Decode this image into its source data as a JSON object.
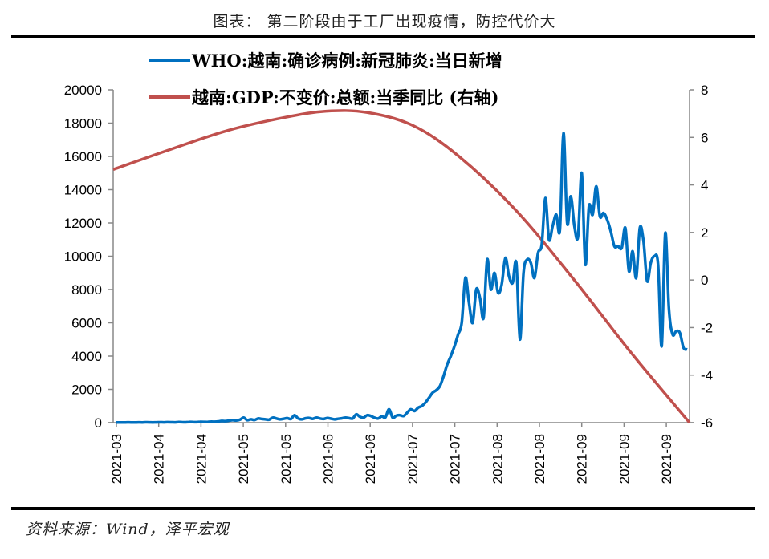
{
  "header": {
    "title": "图表： 第二阶段由于工厂出现疫情，防控代价大"
  },
  "footer": {
    "source": "资料来源：Wind，泽平宏观"
  },
  "colors": {
    "cases": "#0070C0",
    "gdp": "#C0504D",
    "axis": "#888888"
  },
  "chart_data": {
    "type": "line",
    "title": "第二阶段由于工厂出现疫情，防控代价大",
    "xlabel": "",
    "ylabel": "",
    "grid": false,
    "legend_position": "top",
    "x_tick_labels": [
      "2021-03",
      "2021-04",
      "2021-04",
      "2021-05",
      "2021-05",
      "2021-06",
      "2021-06",
      "2021-07",
      "2021-07",
      "2021-08",
      "2021-08",
      "2021-09",
      "2021-09",
      "2021-09"
    ],
    "y_left": {
      "range": [
        0,
        20000
      ],
      "ticks": [
        0,
        2000,
        4000,
        6000,
        8000,
        10000,
        12000,
        14000,
        16000,
        18000,
        20000
      ]
    },
    "y_right": {
      "range": [
        -6,
        8
      ],
      "ticks": [
        -6,
        -4,
        -2,
        0,
        2,
        4,
        6,
        8
      ]
    },
    "x_range": [
      "2021-03",
      "2021-09"
    ],
    "series": [
      {
        "name": "WHO:越南:确诊病例:新冠肺炎:当日新增",
        "axis": "left",
        "values": [
          10,
          15,
          10,
          20,
          15,
          10,
          20,
          15,
          25,
          20,
          15,
          20,
          25,
          20,
          30,
          25,
          20,
          35,
          30,
          25,
          40,
          35,
          30,
          50,
          45,
          40,
          60,
          55,
          70,
          100,
          90,
          120,
          150,
          130,
          180,
          300,
          150,
          200,
          160,
          250,
          220,
          200,
          180,
          300,
          250,
          200,
          230,
          270,
          220,
          450,
          250,
          200,
          260,
          280,
          230,
          300,
          250,
          220,
          280,
          240,
          200,
          230,
          260,
          300,
          270,
          250,
          500,
          350,
          300,
          450,
          400,
          300,
          250,
          380,
          320,
          800,
          300,
          420,
          450,
          400,
          600,
          800,
          700,
          900,
          1000,
          1200,
          1500,
          1800,
          1950,
          2200,
          2800,
          3500,
          4000,
          4600,
          5300,
          6000,
          8700,
          7200,
          6000,
          8000,
          7500,
          6300,
          9800,
          8000,
          9000,
          7800,
          8300,
          9900,
          8800,
          8400,
          9600,
          5000,
          9000,
          9800,
          9600,
          8700,
          10200,
          10700,
          13500,
          11000,
          11800,
          12500,
          11600,
          17400,
          12000,
          13600,
          11800,
          11200,
          15000,
          9500,
          13000,
          12500,
          14200,
          12400,
          12600,
          12200,
          11500,
          10600,
          10600,
          10500,
          11700,
          9100,
          10300,
          8700,
          11700,
          10900,
          8500,
          9600,
          10000,
          9500,
          4600,
          11400,
          6800,
          5300,
          5500,
          5400,
          4500,
          4400
        ]
      },
      {
        "name": "越南:GDP:不变价:总额:当季同比 (右轴)",
        "axis": "right",
        "anchor_points": [
          {
            "x_frac": 0.0,
            "value": 4.65
          },
          {
            "x_frac": 0.1,
            "value": 5.5
          },
          {
            "x_frac": 0.2,
            "value": 6.3
          },
          {
            "x_frac": 0.3,
            "value": 6.85
          },
          {
            "x_frac": 0.37,
            "value": 7.1
          },
          {
            "x_frac": 0.44,
            "value": 7.05
          },
          {
            "x_frac": 0.52,
            "value": 6.5
          },
          {
            "x_frac": 0.6,
            "value": 5.2
          },
          {
            "x_frac": 0.7,
            "value": 2.9
          },
          {
            "x_frac": 0.8,
            "value": 0.0
          },
          {
            "x_frac": 0.9,
            "value": -3.1
          },
          {
            "x_frac": 1.0,
            "value": -6.0
          }
        ]
      }
    ]
  }
}
